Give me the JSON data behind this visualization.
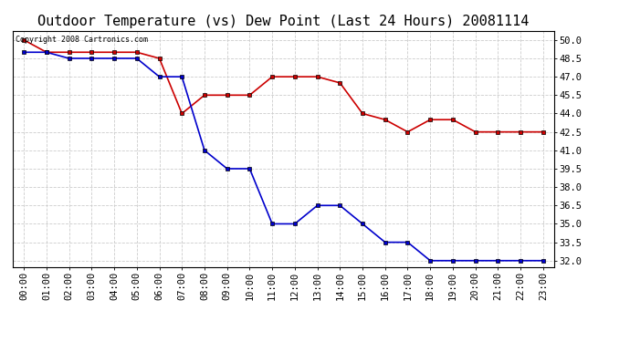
{
  "title": "Outdoor Temperature (vs) Dew Point (Last 24 Hours) 20081114",
  "copyright_text": "Copyright 2008 Cartronics.com",
  "hours": [
    "00:00",
    "01:00",
    "02:00",
    "03:00",
    "04:00",
    "05:00",
    "06:00",
    "07:00",
    "08:00",
    "09:00",
    "10:00",
    "11:00",
    "12:00",
    "13:00",
    "14:00",
    "15:00",
    "16:00",
    "17:00",
    "18:00",
    "19:00",
    "20:00",
    "21:00",
    "22:00",
    "23:00"
  ],
  "temp": [
    49.0,
    49.0,
    48.5,
    48.5,
    48.5,
    48.5,
    47.0,
    47.0,
    41.0,
    39.5,
    39.5,
    35.0,
    35.0,
    36.5,
    36.5,
    35.0,
    33.5,
    33.5,
    32.0,
    32.0,
    32.0,
    32.0,
    32.0,
    32.0
  ],
  "dew": [
    50.0,
    49.0,
    49.0,
    49.0,
    49.0,
    49.0,
    48.5,
    44.0,
    45.5,
    45.5,
    45.5,
    47.0,
    47.0,
    47.0,
    46.5,
    44.0,
    43.5,
    42.5,
    43.5,
    43.5,
    42.5,
    42.5,
    42.5,
    42.5
  ],
  "temp_color": "#0000cc",
  "dew_color": "#cc0000",
  "ylim_min": 31.5,
  "ylim_max": 50.75,
  "yticks": [
    32.0,
    33.5,
    35.0,
    36.5,
    38.0,
    39.5,
    41.0,
    42.5,
    44.0,
    45.5,
    47.0,
    48.5,
    50.0
  ],
  "background_color": "#ffffff",
  "grid_color": "#cccccc",
  "title_fontsize": 11,
  "tick_fontsize": 7.5,
  "marker": "s",
  "marker_size": 2.5,
  "line_width": 1.2
}
